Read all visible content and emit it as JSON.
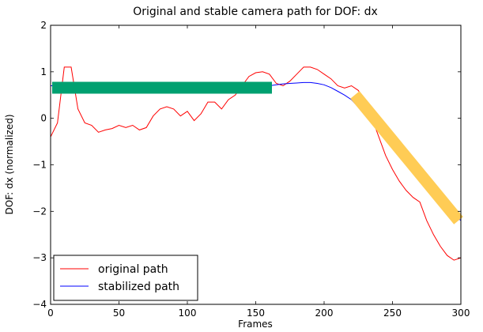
{
  "chart_data": {
    "type": "line",
    "title": "Original and stable camera path for DOF: dx",
    "x_label": "Frames",
    "y_label": "DOF: dx (normalized)",
    "x": [
      0,
      5,
      10,
      15,
      20,
      25,
      30,
      35,
      40,
      45,
      50,
      55,
      60,
      65,
      70,
      75,
      80,
      85,
      90,
      95,
      100,
      105,
      110,
      115,
      120,
      125,
      130,
      135,
      140,
      145,
      150,
      155,
      160,
      165,
      170,
      175,
      180,
      185,
      190,
      195,
      200,
      205,
      210,
      215,
      220,
      225,
      230,
      235,
      240,
      245,
      250,
      255,
      260,
      265,
      270,
      275,
      280,
      285,
      290,
      295,
      300
    ],
    "series": [
      {
        "name": "original path",
        "color": "#ff0000",
        "values": [
          -0.4,
          -0.1,
          1.1,
          1.1,
          0.2,
          -0.1,
          -0.15,
          -0.3,
          -0.25,
          -0.22,
          -0.15,
          -0.2,
          -0.15,
          -0.25,
          -0.2,
          0.05,
          0.2,
          0.25,
          0.2,
          0.05,
          0.15,
          -0.05,
          0.1,
          0.35,
          0.35,
          0.2,
          0.4,
          0.5,
          0.7,
          0.9,
          0.98,
          1.0,
          0.95,
          0.75,
          0.7,
          0.8,
          0.95,
          1.1,
          1.1,
          1.05,
          0.95,
          0.85,
          0.7,
          0.65,
          0.7,
          0.6,
          0.35,
          0.0,
          -0.4,
          -0.8,
          -1.1,
          -1.35,
          -1.55,
          -1.7,
          -1.8,
          -2.2,
          -2.5,
          -2.75,
          -2.95,
          -3.05,
          -3.0
        ]
      },
      {
        "name": "stabilized path",
        "color": "#0000ff",
        "values": [
          0.7,
          0.7,
          0.7,
          0.7,
          0.7,
          0.7,
          0.7,
          0.7,
          0.7,
          0.7,
          0.7,
          0.7,
          0.7,
          0.7,
          0.7,
          0.7,
          0.7,
          0.7,
          0.7,
          0.7,
          0.7,
          0.7,
          0.7,
          0.7,
          0.7,
          0.7,
          0.7,
          0.7,
          0.7,
          0.7,
          0.7,
          0.7,
          0.7,
          0.72,
          0.74,
          0.75,
          0.76,
          0.77,
          0.77,
          0.75,
          0.72,
          0.66,
          0.58,
          0.5,
          0.4,
          0.24,
          0.08,
          -0.09,
          -0.25,
          -0.41,
          -0.58,
          -0.74,
          -0.9,
          -1.06,
          -1.23,
          -1.39,
          -1.55,
          -1.71,
          -1.88,
          -2.04,
          -2.2
        ]
      }
    ],
    "xlim": [
      0,
      300
    ],
    "xticks": [
      0,
      50,
      100,
      150,
      200,
      250,
      300
    ],
    "ylim": [
      -4,
      2
    ],
    "yticks": [
      {
        "value": -4,
        "label": "−4"
      },
      {
        "value": -3,
        "label": "−3"
      },
      {
        "value": -2,
        "label": "−2"
      },
      {
        "value": -1,
        "label": "−1"
      },
      0,
      1,
      2
    ],
    "legend": "lower left"
  }
}
